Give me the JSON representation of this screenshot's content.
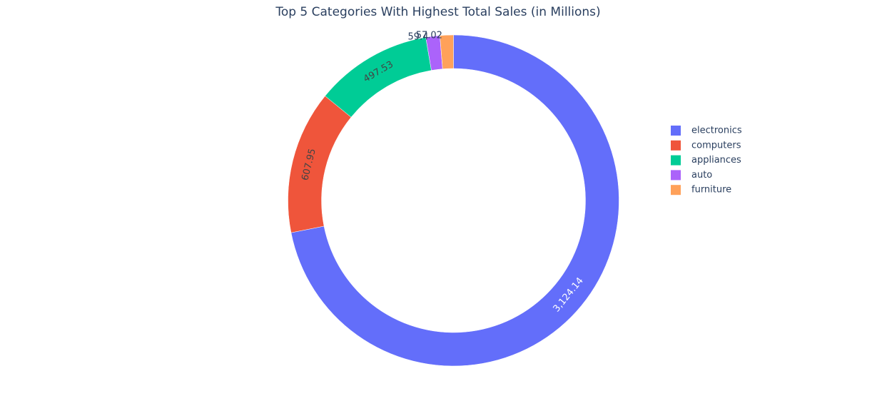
{
  "chart_data": {
    "type": "pie",
    "style": "donut",
    "title": "Top 5 Categories With Highest Total Sales (in Millions)",
    "labels": [
      "electronics",
      "computers",
      "appliances",
      "auto",
      "furniture"
    ],
    "values": [
      3124.14,
      607.95,
      497.53,
      59.4,
      57.02
    ],
    "value_labels": [
      "3,124.14",
      "607.95",
      "497.53",
      "59.4",
      "57.02"
    ],
    "colors": [
      "#636efa",
      "#EF553B",
      "#00cc96",
      "#ab63fa",
      "#FFA15A"
    ],
    "legend_position": "right"
  }
}
